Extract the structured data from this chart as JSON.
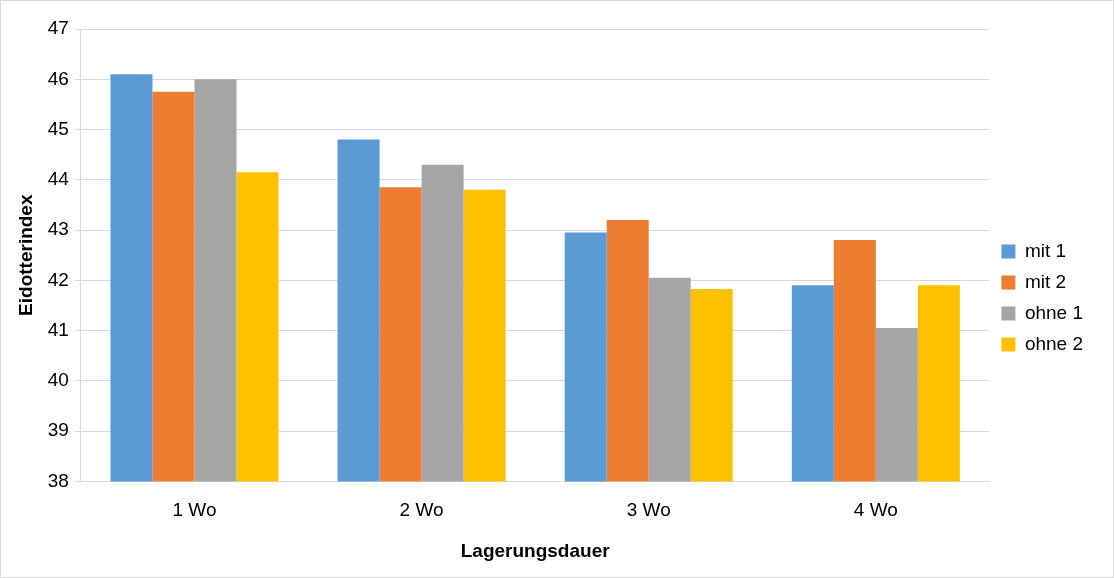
{
  "chart_data": {
    "type": "bar",
    "xlabel": "Lagerungsdauer",
    "ylabel": "Eidotterindex",
    "categories": [
      "1 Wo",
      "2 Wo",
      "3 Wo",
      "4 Wo"
    ],
    "series": [
      {
        "name": "mit 1",
        "color": "#5b9bd5",
        "values": [
          46.1,
          44.8,
          42.95,
          41.9
        ]
      },
      {
        "name": "mit 2",
        "color": "#ed7d31",
        "values": [
          45.75,
          43.85,
          43.2,
          42.8
        ]
      },
      {
        "name": "ohne 1",
        "color": "#a5a5a5",
        "values": [
          46.0,
          44.3,
          42.05,
          41.05
        ]
      },
      {
        "name": "ohne 2",
        "color": "#ffc000",
        "values": [
          44.15,
          43.8,
          41.83,
          41.9
        ]
      }
    ],
    "ylim": [
      38,
      47
    ],
    "yticks": [
      38,
      39,
      40,
      41,
      42,
      43,
      44,
      45,
      46,
      47
    ],
    "grid": "y",
    "legend": "right"
  }
}
